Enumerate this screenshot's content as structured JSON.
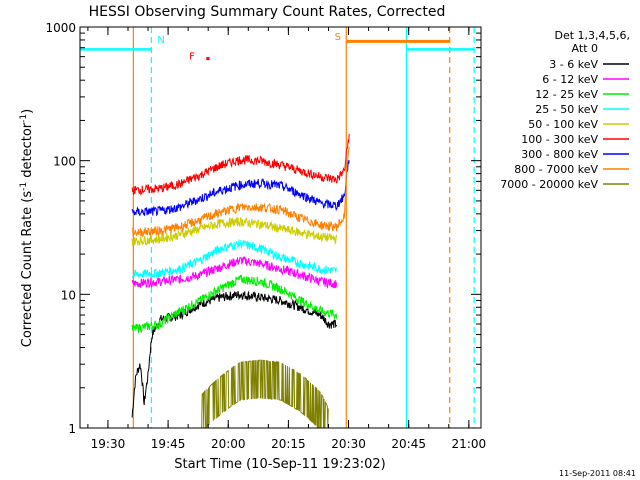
{
  "chart_data": {
    "type": "line",
    "title": "HESSI Observing Summary Count Rates, Corrected",
    "xlabel": "Start Time (10-Sep-11 19:23:02)",
    "ylabel": "Corrected Count Rate (s",
    "ylabel_sup1": "-1",
    "ylabel_mid": " detector",
    "ylabel_sup2": "-1",
    "ylabel_end": ")",
    "yscale": "log",
    "ylim": [
      1,
      1000
    ],
    "xlim_minutes_since_1923": [
      0,
      100
    ],
    "x_ticks": [
      {
        "label": "19:30",
        "min": 6.97
      },
      {
        "label": "19:45",
        "min": 21.97
      },
      {
        "label": "20:00",
        "min": 36.97
      },
      {
        "label": "20:15",
        "min": 51.97
      },
      {
        "label": "20:30",
        "min": 66.97
      },
      {
        "label": "20:45",
        "min": 81.97
      },
      {
        "label": "21:00",
        "min": 96.97
      }
    ],
    "y_ticks": [
      {
        "label": "1",
        "v": 1
      },
      {
        "label": "10",
        "v": 10
      },
      {
        "label": "100",
        "v": 100
      },
      {
        "label": "1000",
        "v": 1000
      }
    ],
    "legend": {
      "header1": "Det 1,3,4,5,6,",
      "header2": "Att 0",
      "entries": [
        {
          "label": "3 - 6 keV",
          "color": "#000000"
        },
        {
          "label": "6 - 12 keV",
          "color": "#ff00ff"
        },
        {
          "label": "12 - 25 keV",
          "color": "#00ee00"
        },
        {
          "label": "25 - 50 keV",
          "color": "#00ffff"
        },
        {
          "label": "50 - 100 keV",
          "color": "#cccc00"
        },
        {
          "label": "100 - 300 keV",
          "color": "#ff0000"
        },
        {
          "label": "300 - 800 keV",
          "color": "#0000ff"
        },
        {
          "label": "800 - 7000 keV",
          "color": "#ff8000"
        },
        {
          "label": "7000 - 20000 keV",
          "color": "#808000"
        }
      ]
    },
    "series": [
      {
        "name": "3 - 6 keV",
        "color": "#000000",
        "x": [
          13,
          14,
          15,
          16,
          17,
          18,
          20,
          25,
          30,
          35,
          40,
          45,
          50,
          55,
          60,
          62,
          64
        ],
        "y": [
          1.2,
          2.5,
          3.0,
          1.5,
          2.5,
          5,
          6.5,
          7,
          8.5,
          9.5,
          10,
          9.5,
          9,
          8,
          7,
          6,
          6
        ]
      },
      {
        "name": "6 - 12 keV",
        "color": "#ff00ff",
        "x": [
          13,
          20,
          25,
          30,
          35,
          40,
          45,
          50,
          55,
          60,
          64
        ],
        "y": [
          12,
          12.5,
          13,
          14,
          16,
          18,
          17,
          15.5,
          14,
          12.5,
          12
        ]
      },
      {
        "name": "12 - 25 keV",
        "color": "#00ee00",
        "x": [
          13,
          20,
          25,
          30,
          35,
          40,
          45,
          50,
          55,
          60,
          64
        ],
        "y": [
          5.5,
          6,
          7.5,
          9,
          11,
          13,
          12.5,
          11,
          9,
          7.5,
          7
        ]
      },
      {
        "name": "25 - 50 keV",
        "color": "#00ffff",
        "x": [
          13,
          20,
          25,
          30,
          35,
          40,
          45,
          50,
          55,
          60,
          64
        ],
        "y": [
          14,
          14.5,
          15.5,
          18,
          22,
          24,
          22,
          19,
          17,
          15.5,
          15
        ]
      },
      {
        "name": "50 - 100 keV",
        "color": "#cccc00",
        "x": [
          13,
          20,
          25,
          30,
          35,
          40,
          45,
          50,
          55,
          60,
          64
        ],
        "y": [
          25,
          26,
          28,
          31,
          34,
          35,
          33.5,
          31,
          29,
          27,
          26
        ]
      },
      {
        "name": "100 - 300 keV",
        "color": "#ff0000",
        "x": [
          13,
          20,
          25,
          30,
          35,
          40,
          45,
          50,
          55,
          60,
          64,
          66,
          67.2
        ],
        "y": [
          60,
          62,
          67,
          78,
          92,
          102,
          100,
          93,
          84,
          76,
          72,
          85,
          160
        ]
      },
      {
        "name": "300 - 800 keV",
        "color": "#0000ff",
        "x": [
          13,
          20,
          25,
          30,
          35,
          40,
          45,
          50,
          55,
          60,
          64,
          66,
          67.2
        ],
        "y": [
          41,
          42,
          45,
          52,
          60,
          66,
          68,
          65,
          56,
          48,
          46,
          55,
          110
        ]
      },
      {
        "name": "800 - 7000 keV",
        "color": "#ff8000",
        "x": [
          13,
          20,
          25,
          30,
          35,
          40,
          45,
          50,
          55,
          60,
          64,
          66,
          67.2
        ],
        "y": [
          29,
          30,
          32,
          36,
          41,
          45,
          45,
          43,
          37,
          33,
          32,
          38,
          140
        ]
      },
      {
        "name": "7000 - 20000 keV",
        "color": "#808000",
        "x": [
          30,
          40,
          45,
          50,
          55,
          60,
          62
        ],
        "y": [
          1.5,
          2.7,
          2.8,
          2.7,
          2.2,
          1.6,
          1.2
        ]
      }
    ],
    "night_markers": [
      {
        "x_min": 0,
        "x_max": 17.8,
        "y": 680
      },
      {
        "x_min": 81.4,
        "x_max": 98.3,
        "y": 680
      }
    ],
    "saa_markers": [
      {
        "x_min": 66.4,
        "x_max": 92.2,
        "y": 780
      }
    ],
    "flare_markers": [
      {
        "x_min": 31.5,
        "x_max": 32.3,
        "y": 580
      }
    ],
    "vlines": [
      {
        "x": 13.3,
        "color": "#ff8000",
        "style": "solid"
      },
      {
        "x": 17.8,
        "color": "#00ffff",
        "style": "dashed"
      },
      {
        "x": 66.4,
        "color": "#ff8000",
        "style": "solid"
      },
      {
        "x": 81.4,
        "color": "#00ffff",
        "style": "solid"
      },
      {
        "x": 92.2,
        "color": "#ff8000",
        "style": "dashed"
      },
      {
        "x": 98.3,
        "color": "#00ffff",
        "style": "dashed"
      }
    ],
    "annotations": [
      {
        "text": "N",
        "x": 19.3,
        "y": 760,
        "color": "#00ffff"
      },
      {
        "text": "F",
        "x": 27.2,
        "y": 570,
        "color": "#ff0000"
      },
      {
        "text": "S",
        "x": 63.5,
        "y": 800,
        "color": "#ff8000"
      }
    ],
    "timestamp": "11-Sep-2011 08:41"
  }
}
